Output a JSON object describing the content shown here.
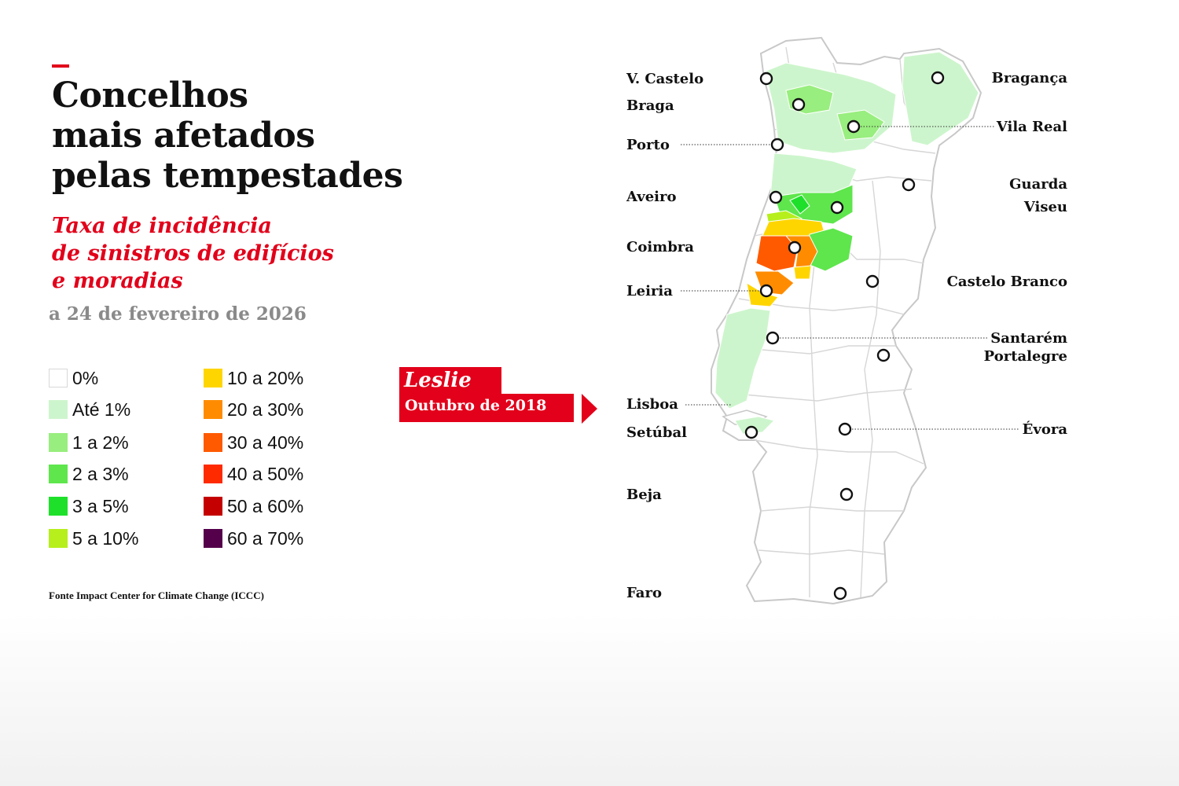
{
  "title": {
    "line1": "Concelhos",
    "line2": "mais afetados",
    "line3": "pelas tempestades"
  },
  "subtitle": {
    "line1": "Taxa de incidência",
    "line2": "de sinistros de edifícios",
    "line3": "e moradias"
  },
  "date": "a 24 de fevereiro de 2026",
  "legend": [
    {
      "label": "0%",
      "color": "#ffffff"
    },
    {
      "label": "Até 1%",
      "color": "#cdf5cd"
    },
    {
      "label": "1 a 2%",
      "color": "#98ee7e"
    },
    {
      "label": "2 a 3%",
      "color": "#5ee64c"
    },
    {
      "label": "3 a 5%",
      "color": "#1ee02a"
    },
    {
      "label": "5 a 10%",
      "color": "#b6ef1c"
    },
    {
      "label": "10 a 20%",
      "color": "#ffd500"
    },
    {
      "label": "20 a 30%",
      "color": "#ff8c00"
    },
    {
      "label": "30 a 40%",
      "color": "#ff5a00"
    },
    {
      "label": "40 a 50%",
      "color": "#ff2a00"
    },
    {
      "label": "50 a 60%",
      "color": "#c40000"
    },
    {
      "label": "60 a 70%",
      "color": "#54004a"
    }
  ],
  "source": "Fonte Impact Center for Climate Change (ICCC)",
  "callout": {
    "title": "Leslie",
    "subtitle": "Outubro de 2018",
    "color": "#e2001a"
  },
  "cities": [
    {
      "name": "V. Castelo"
    },
    {
      "name": "Braga"
    },
    {
      "name": "Porto"
    },
    {
      "name": "Aveiro"
    },
    {
      "name": "Coimbra"
    },
    {
      "name": "Leiria"
    },
    {
      "name": "Lisboa"
    },
    {
      "name": "Setúbal"
    },
    {
      "name": "Beja"
    },
    {
      "name": "Faro"
    },
    {
      "name": "Bragança"
    },
    {
      "name": "Vila Real"
    },
    {
      "name": "Guarda"
    },
    {
      "name": "Viseu"
    },
    {
      "name": "Castelo Branco"
    },
    {
      "name": "Santarém"
    },
    {
      "name": "Portalegre"
    },
    {
      "name": "Évora"
    }
  ]
}
